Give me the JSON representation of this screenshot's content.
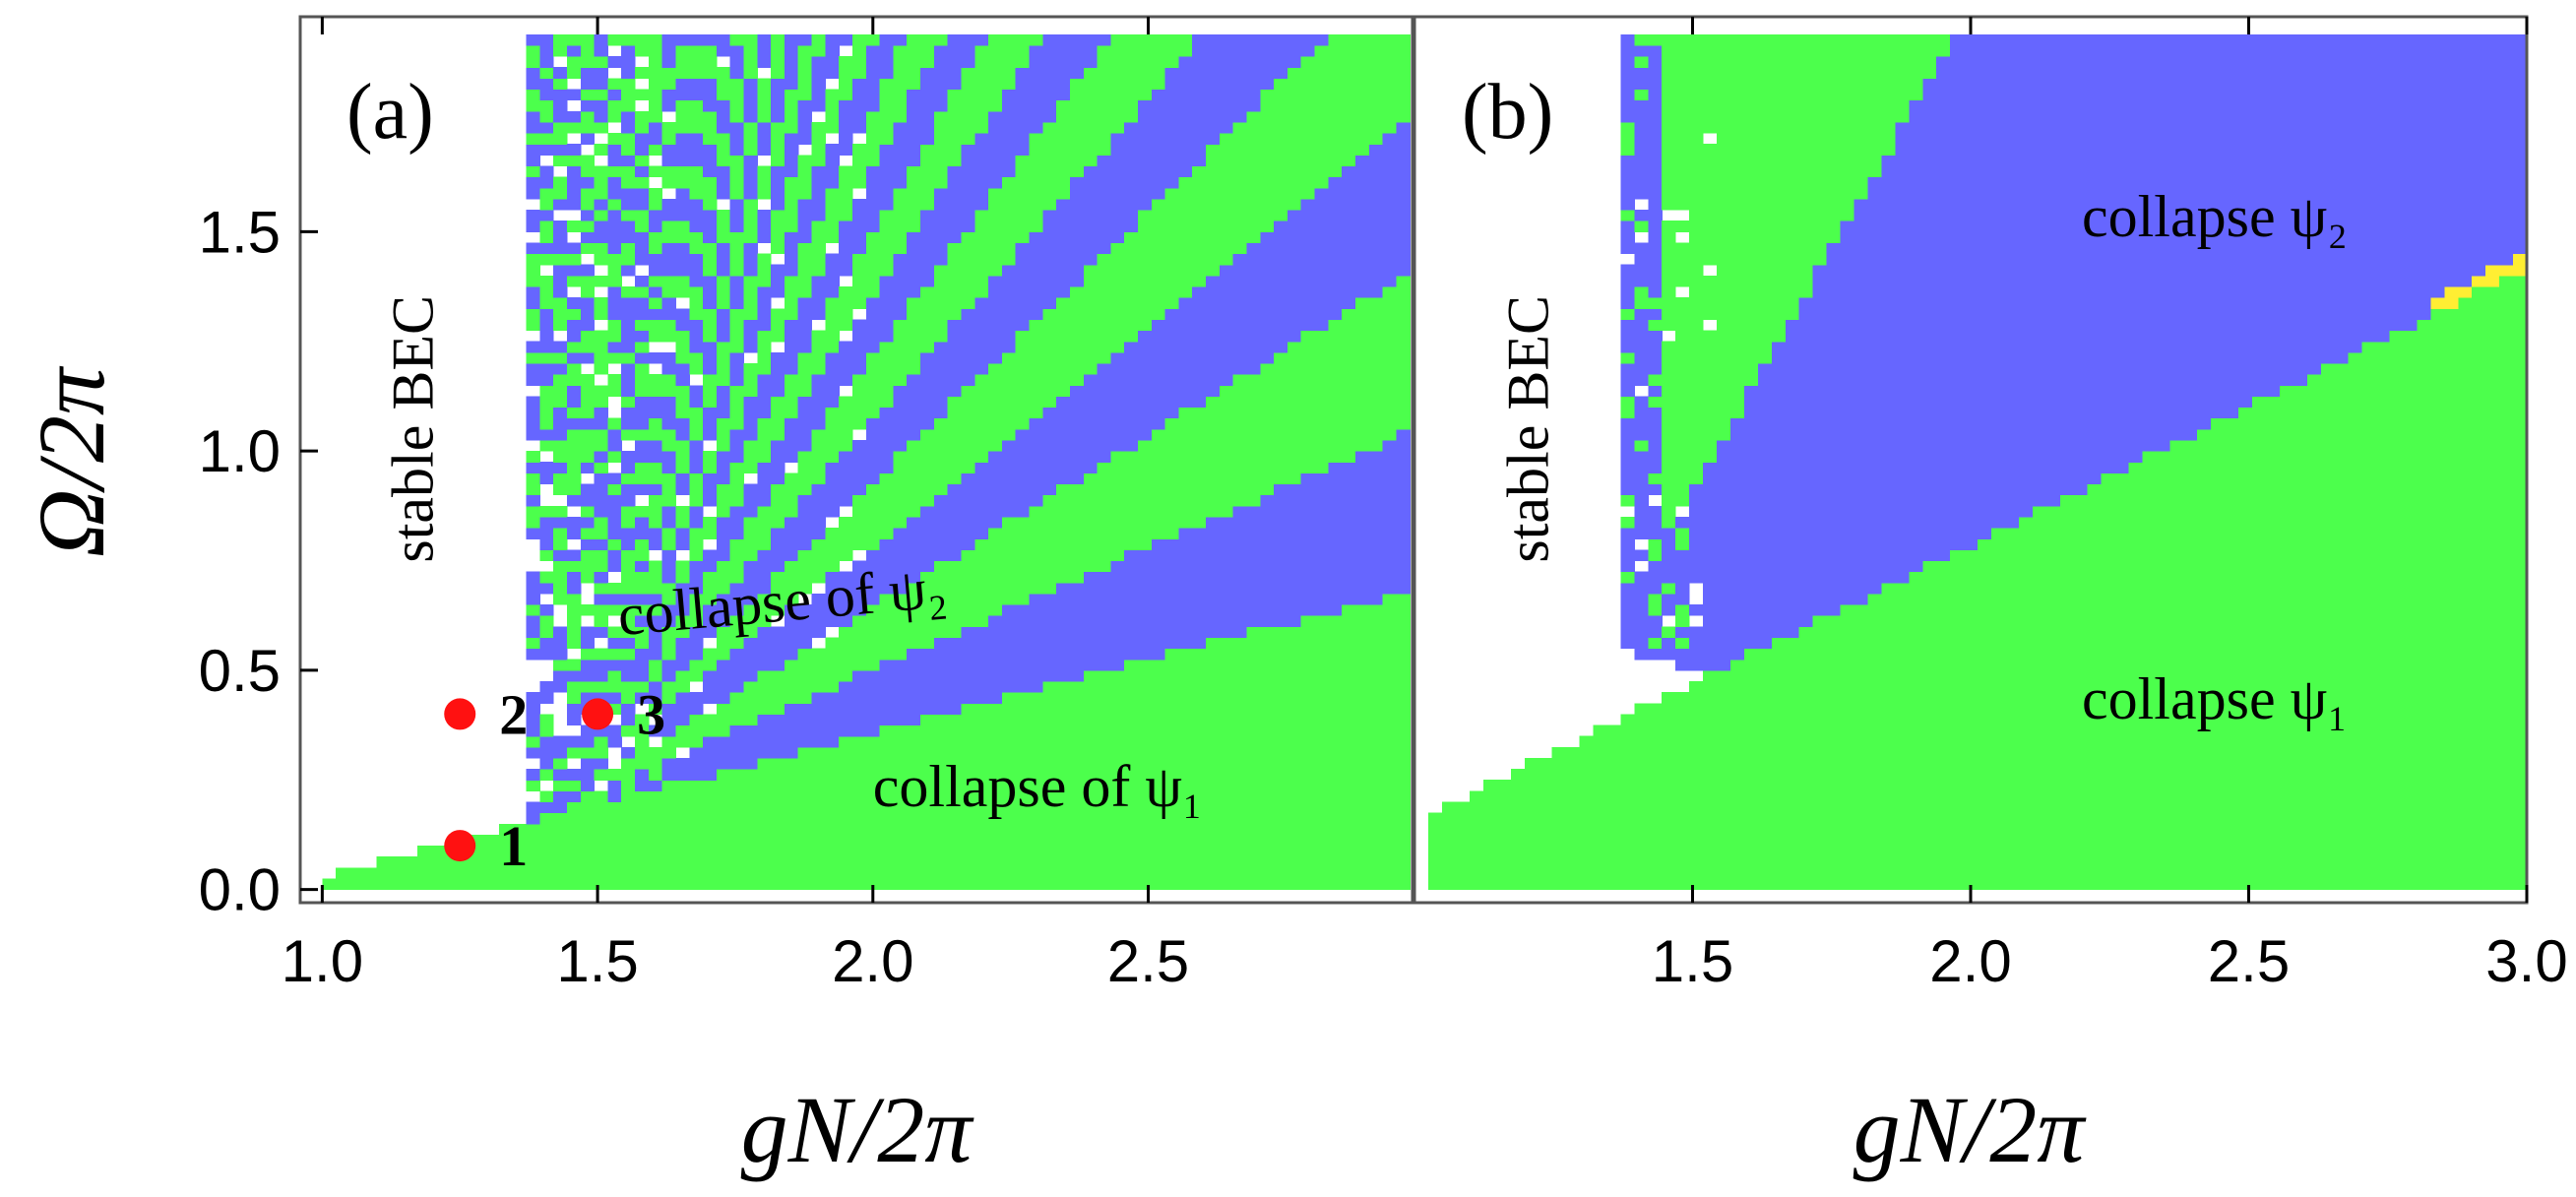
{
  "colors": {
    "green": "#4cff4c",
    "blue": "#6666ff",
    "yellow": "#ffee33",
    "stable": "#ffffff",
    "marker": "#ff1111",
    "frame": "#555555"
  },
  "y_axis_label": "Ω/2π",
  "chart_data": [
    {
      "type": "heatmap",
      "panel_label": "(a)",
      "xlabel": "gN/2π",
      "ylabel": "Ω/2π",
      "xlim": [
        0.96,
        2.98
      ],
      "ylim": [
        -0.03,
        1.99
      ],
      "x_ticks": [
        "1.0",
        "1.5",
        "2.0",
        "2.5"
      ],
      "x_tick_values": [
        1.0,
        1.5,
        2.0,
        2.5
      ],
      "y_ticks": [
        "0.0",
        "0.5",
        "1.0",
        "1.5"
      ],
      "y_tick_values": [
        0.0,
        0.5,
        1.0,
        1.5
      ],
      "legend": {
        "stable": "stable BEC",
        "collapse_psi2": "collapse of ψ₂",
        "collapse_psi1": "collapse of ψ₁"
      },
      "region_texts": [
        {
          "text": "stable BEC",
          "x": 1.2,
          "y": 1.05,
          "rotate": -90
        },
        {
          "text": "collapse of ψ₂",
          "x": 1.54,
          "y": 0.58,
          "rotate": -5
        },
        {
          "text": "collapse of ψ₁",
          "x": 2.0,
          "y": 0.19,
          "rotate": 0
        }
      ],
      "boundaries": {
        "psi1_lower_x_at_omega0": 1.0,
        "psi1_line_from": [
          1.0,
          0.03
        ],
        "psi1_line_to": [
          2.97,
          0.68
        ],
        "unstable_onset_x": 1.37,
        "pattern": "alternating diagonal bands of green and blue above the ψ₁ boundary"
      },
      "points": [
        {
          "label": "1",
          "x": 1.25,
          "y": 0.1
        },
        {
          "label": "2",
          "x": 1.25,
          "y": 0.4
        },
        {
          "label": "3",
          "x": 1.5,
          "y": 0.4
        }
      ]
    },
    {
      "type": "heatmap",
      "panel_label": "(b)",
      "xlabel": "gN/2π",
      "ylabel": "Ω/2π",
      "xlim": [
        1.0,
        3.0
      ],
      "ylim": [
        -0.03,
        1.99
      ],
      "x_ticks": [
        "1.5",
        "2.0",
        "2.5",
        "3.0"
      ],
      "x_tick_values": [
        1.5,
        2.0,
        2.5,
        3.0
      ],
      "legend": {
        "stable": "stable BEC",
        "collapse_psi2": "collapse ψ₂",
        "collapse_psi1": "collapse ψ₁"
      },
      "region_texts": [
        {
          "text": "stable BEC",
          "x": 1.24,
          "y": 1.05,
          "rotate": -90
        },
        {
          "text": "collapse ψ₂",
          "x": 2.2,
          "y": 1.49,
          "rotate": 0
        },
        {
          "text": "collapse ψ₁",
          "x": 2.2,
          "y": 0.39,
          "rotate": 0
        }
      ],
      "boundaries": {
        "psi1_line_from": [
          1.04,
          0.18
        ],
        "psi1_line_to": [
          3.0,
          1.42
        ],
        "unstable_onset_x": 1.37,
        "pattern": "single green band (ψ₂) near onset, blue above ψ₁ boundary"
      }
    }
  ]
}
